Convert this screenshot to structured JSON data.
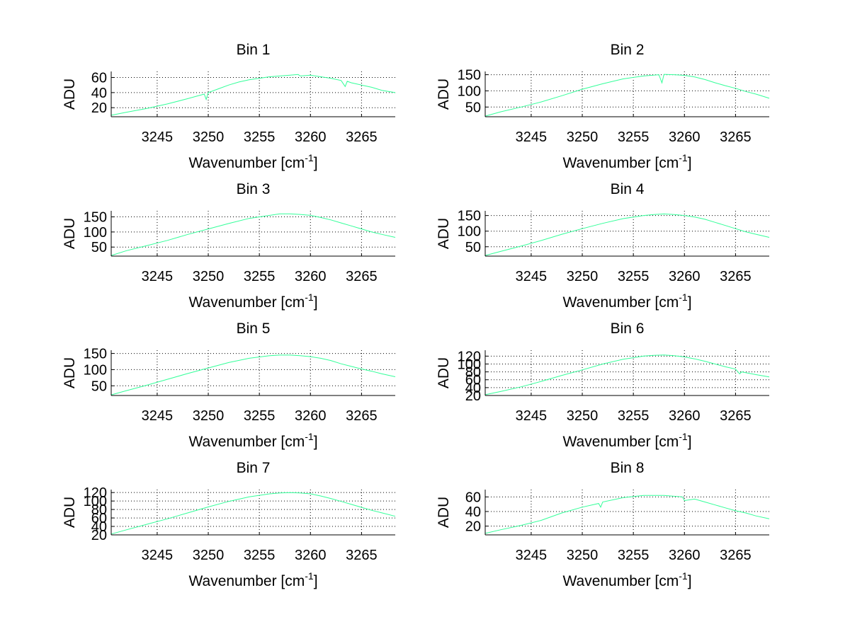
{
  "line_color": "#33ff99",
  "chart_data": [
    {
      "type": "line",
      "title": "Bin 1",
      "xlabel": "Wavenumber [cm",
      "xlabel_sup": "-1",
      "xlabel_end": "]",
      "ylabel": "ADU",
      "xlim": [
        3240.5,
        3268.3
      ],
      "ylim": [
        8,
        68
      ],
      "xticks": [
        3245,
        3250,
        3255,
        3260,
        3265
      ],
      "yticks": [
        20,
        40,
        60
      ],
      "grid": true,
      "series": [
        {
          "name": "Bin 1",
          "x": [
            3240.5,
            3242,
            3244,
            3246,
            3248,
            3249.6,
            3249.8,
            3250,
            3251,
            3252,
            3253,
            3254,
            3255,
            3256,
            3257,
            3258,
            3258.8,
            3259,
            3260,
            3261,
            3262,
            3263,
            3263.4,
            3263.6,
            3264,
            3265,
            3266,
            3267,
            3268.3
          ],
          "y": [
            10,
            14,
            19,
            25,
            32,
            38,
            31,
            40,
            45,
            50,
            54,
            57,
            59,
            61,
            62,
            63,
            64,
            62,
            63,
            61,
            59,
            56,
            48,
            55,
            53,
            50,
            47,
            43,
            40
          ]
        }
      ]
    },
    {
      "type": "line",
      "title": "Bin 2",
      "xlabel": "Wavenumber [cm",
      "xlabel_sup": "-1",
      "xlabel_end": "]",
      "ylabel": "ADU",
      "xlim": [
        3240.5,
        3268.3
      ],
      "ylim": [
        20,
        160
      ],
      "xticks": [
        3245,
        3250,
        3255,
        3260,
        3265
      ],
      "yticks": [
        50,
        100,
        150
      ],
      "grid": true,
      "series": [
        {
          "name": "Bin 2",
          "x": [
            3240.5,
            3242,
            3244,
            3246,
            3248,
            3250,
            3252,
            3254,
            3256,
            3257.5,
            3257.8,
            3258,
            3259,
            3260,
            3261,
            3262,
            3263,
            3264,
            3265,
            3266,
            3267,
            3268.3
          ],
          "y": [
            22,
            35,
            50,
            66,
            85,
            105,
            122,
            137,
            146,
            150,
            125,
            151,
            150,
            148,
            143,
            135,
            125,
            116,
            108,
            98,
            90,
            77
          ]
        }
      ]
    },
    {
      "type": "line",
      "title": "Bin 3",
      "xlabel": "Wavenumber [cm",
      "xlabel_sup": "-1",
      "xlabel_end": "]",
      "ylabel": "ADU",
      "xlim": [
        3240.5,
        3268.3
      ],
      "ylim": [
        20,
        170
      ],
      "xticks": [
        3245,
        3250,
        3255,
        3260,
        3265
      ],
      "yticks": [
        50,
        100,
        150
      ],
      "grid": true,
      "series": [
        {
          "name": "Bin 3",
          "x": [
            3240.5,
            3242,
            3244,
            3246,
            3248,
            3250,
            3252,
            3254,
            3256,
            3257,
            3258,
            3259,
            3260,
            3261,
            3262,
            3263,
            3264,
            3265,
            3266,
            3267,
            3268.3
          ],
          "y": [
            22,
            38,
            55,
            72,
            92,
            110,
            128,
            145,
            155,
            160,
            160,
            158,
            155,
            148,
            140,
            130,
            120,
            110,
            100,
            92,
            82
          ]
        }
      ]
    },
    {
      "type": "line",
      "title": "Bin 4",
      "xlabel": "Wavenumber [cm",
      "xlabel_sup": "-1",
      "xlabel_end": "]",
      "ylabel": "ADU",
      "xlim": [
        3240.5,
        3268.3
      ],
      "ylim": [
        20,
        165
      ],
      "xticks": [
        3245,
        3250,
        3255,
        3260,
        3265
      ],
      "yticks": [
        50,
        100,
        150
      ],
      "grid": true,
      "series": [
        {
          "name": "Bin 4",
          "x": [
            3240.5,
            3242,
            3244,
            3246,
            3248,
            3250,
            3252,
            3254,
            3256,
            3257,
            3258,
            3259,
            3260,
            3261,
            3262,
            3263,
            3264,
            3265,
            3266,
            3267,
            3268.3
          ],
          "y": [
            22,
            35,
            52,
            70,
            90,
            108,
            125,
            140,
            150,
            153,
            155,
            153,
            150,
            145,
            138,
            128,
            118,
            108,
            98,
            90,
            80
          ]
        }
      ]
    },
    {
      "type": "line",
      "title": "Bin 5",
      "xlabel": "Wavenumber [cm",
      "xlabel_sup": "-1",
      "xlabel_end": "]",
      "ylabel": "ADU",
      "xlim": [
        3240.5,
        3268.3
      ],
      "ylim": [
        20,
        160
      ],
      "xticks": [
        3245,
        3250,
        3255,
        3260,
        3265
      ],
      "yticks": [
        50,
        100,
        150
      ],
      "grid": true,
      "series": [
        {
          "name": "Bin 5",
          "x": [
            3240.5,
            3242,
            3244,
            3246,
            3248,
            3250,
            3252,
            3254,
            3256,
            3257,
            3258,
            3259,
            3260,
            3261,
            3262,
            3263,
            3264,
            3265,
            3266,
            3267,
            3268.3
          ],
          "y": [
            22,
            35,
            52,
            70,
            88,
            105,
            122,
            135,
            143,
            145,
            145,
            143,
            140,
            135,
            128,
            118,
            110,
            102,
            95,
            87,
            78
          ]
        }
      ]
    },
    {
      "type": "line",
      "title": "Bin 6",
      "xlabel": "Wavenumber [cm",
      "xlabel_sup": "-1",
      "xlabel_end": "]",
      "ylabel": "ADU",
      "xlim": [
        3240.5,
        3268.3
      ],
      "ylim": [
        20,
        135
      ],
      "xticks": [
        3245,
        3250,
        3255,
        3260,
        3265
      ],
      "yticks": [
        20,
        40,
        60,
        80,
        100,
        120
      ],
      "ytick_labels": [
        "20",
        "40",
        "60",
        "80",
        "100",
        "120"
      ],
      "grid": true,
      "series": [
        {
          "name": "Bin 6",
          "x": [
            3240.5,
            3242,
            3244,
            3246,
            3248,
            3250,
            3252,
            3254,
            3256,
            3257,
            3258,
            3259,
            3260,
            3261,
            3262,
            3263,
            3264,
            3265,
            3265.4,
            3265.6,
            3266,
            3267,
            3268.3
          ],
          "y": [
            22,
            30,
            42,
            56,
            71,
            85,
            100,
            112,
            120,
            122,
            123,
            121,
            118,
            113,
            107,
            100,
            93,
            87,
            75,
            80,
            78,
            73,
            67
          ]
        }
      ]
    },
    {
      "type": "line",
      "title": "Bin 7",
      "xlabel": "Wavenumber [cm",
      "xlabel_sup": "-1",
      "xlabel_end": "]",
      "ylabel": "ADU",
      "xlim": [
        3240.5,
        3268.3
      ],
      "ylim": [
        20,
        127
      ],
      "xticks": [
        3245,
        3250,
        3255,
        3260,
        3265
      ],
      "yticks": [
        20,
        40,
        60,
        80,
        100,
        120
      ],
      "ytick_labels": [
        "20",
        "40",
        "60",
        "80",
        "100",
        "120"
      ],
      "grid": true,
      "series": [
        {
          "name": "Bin 7",
          "x": [
            3240.5,
            3242,
            3244,
            3246,
            3248,
            3250,
            3252,
            3254,
            3256,
            3257,
            3258,
            3259,
            3260,
            3261,
            3262,
            3263,
            3264,
            3265,
            3266,
            3267,
            3268.3
          ],
          "y": [
            22,
            32,
            45,
            58,
            72,
            86,
            99,
            110,
            117,
            119,
            120,
            119,
            117,
            112,
            106,
            99,
            92,
            85,
            78,
            72,
            64
          ]
        }
      ]
    },
    {
      "type": "line",
      "title": "Bin 8",
      "xlabel": "Wavenumber [cm",
      "xlabel_sup": "-1",
      "xlabel_end": "]",
      "ylabel": "ADU",
      "xlim": [
        3240.5,
        3268.3
      ],
      "ylim": [
        8,
        70
      ],
      "xticks": [
        3245,
        3250,
        3255,
        3260,
        3265
      ],
      "yticks": [
        20,
        40,
        60
      ],
      "grid": true,
      "series": [
        {
          "name": "Bin 8",
          "x": [
            3240.5,
            3242,
            3244,
            3246,
            3248,
            3250,
            3251.6,
            3251.8,
            3252,
            3254,
            3256,
            3258,
            3259.8,
            3260,
            3261,
            3262,
            3263,
            3264,
            3265,
            3266,
            3267,
            3268.3
          ],
          "y": [
            10,
            15,
            21,
            28,
            38,
            46,
            51,
            46,
            53,
            59,
            62,
            62,
            60,
            55,
            57,
            53,
            49,
            45,
            41,
            38,
            34,
            30
          ]
        }
      ]
    }
  ]
}
